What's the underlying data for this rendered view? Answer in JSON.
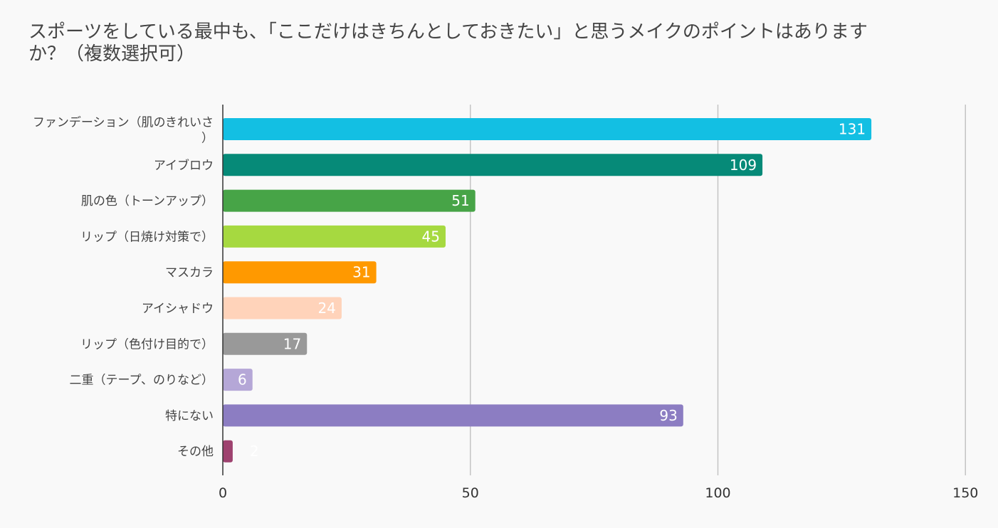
{
  "chart_data": {
    "type": "bar",
    "orientation": "horizontal",
    "title": "スポーツをしている最中も、「ここだけはきちんとしておきたい」と思うメイクのポイントはありますか？（複数選択可）",
    "categories": [
      "ファンデーション（肌のきれいさ）",
      "アイブロウ",
      "肌の色（トーンアップ）",
      "リップ（日焼け対策で）",
      "マスカラ",
      "アイシャドウ",
      "リップ（色付け目的で）",
      "二重（テープ、のりなど）",
      "特にない",
      "その他"
    ],
    "values": [
      131,
      109,
      51,
      45,
      31,
      24,
      17,
      6,
      93,
      2
    ],
    "colors": [
      "#13bfe3",
      "#068a78",
      "#47a447",
      "#a6d940",
      "#ff9900",
      "#ffd3ba",
      "#999999",
      "#b5a7d7",
      "#8c7dc2",
      "#9e426f"
    ],
    "xlim": [
      0,
      150
    ],
    "xticks": [
      0,
      50,
      100,
      150
    ],
    "xlabel": "",
    "ylabel": "",
    "grid": true,
    "legend": "none"
  }
}
